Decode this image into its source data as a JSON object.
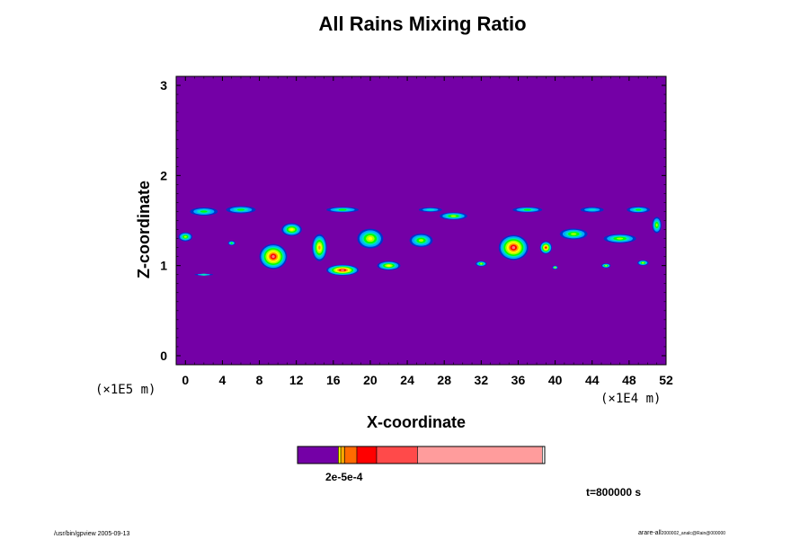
{
  "chart_data": {
    "type": "heatmap",
    "title": "All Rains Mixing Ratio",
    "xlabel": "X-coordinate",
    "ylabel": "Z-coordinate",
    "x_scale_label": "(×1E4 m)",
    "y_scale_label": "(×1E5 m)",
    "x_ticks": [
      0,
      4,
      8,
      12,
      16,
      20,
      24,
      28,
      32,
      36,
      40,
      44,
      48,
      52
    ],
    "y_ticks": [
      0,
      1,
      2,
      3
    ],
    "xlim": [
      -1.0,
      52.0
    ],
    "ylim": [
      -0.1,
      3.1
    ],
    "colorbar": {
      "label": "2e-5e-4",
      "colors": [
        "#7400a6",
        "#ffff00",
        "#ffaa00",
        "#ff6a00",
        "#ff0000",
        "#ff4a4a",
        "#ff9c9c"
      ],
      "fractions": [
        0.165,
        0.01,
        0.015,
        0.05,
        0.08,
        0.165,
        0.505
      ]
    },
    "background_color": "#7400a6",
    "band_colors": [
      "#0033cc",
      "#00aaff",
      "#00e0c0",
      "#00ff00",
      "#aaff00",
      "#ffff00",
      "#ff9900",
      "#ff0000",
      "#ff7777"
    ],
    "features": [
      {
        "x": 2.0,
        "z": 1.6,
        "w": 3.0,
        "h": 0.09,
        "peak": 0.4
      },
      {
        "x": 6.0,
        "z": 1.62,
        "w": 3.2,
        "h": 0.08,
        "peak": 0.4
      },
      {
        "x": 2.0,
        "z": 0.9,
        "w": 2.0,
        "h": 0.02,
        "peak": 0.35
      },
      {
        "x": 0.0,
        "z": 1.32,
        "w": 1.5,
        "h": 0.1,
        "peak": 0.5
      },
      {
        "x": 5.0,
        "z": 1.25,
        "w": 0.8,
        "h": 0.05,
        "peak": 0.45
      },
      {
        "x": 9.5,
        "z": 1.1,
        "w": 3.0,
        "h": 0.28,
        "peak": 1.0
      },
      {
        "x": 11.5,
        "z": 1.4,
        "w": 2.2,
        "h": 0.14,
        "peak": 0.7
      },
      {
        "x": 14.5,
        "z": 1.2,
        "w": 1.6,
        "h": 0.3,
        "peak": 0.8
      },
      {
        "x": 17.0,
        "z": 0.95,
        "w": 3.5,
        "h": 0.12,
        "peak": 0.95
      },
      {
        "x": 20.0,
        "z": 1.3,
        "w": 2.8,
        "h": 0.22,
        "peak": 0.7
      },
      {
        "x": 22.0,
        "z": 1.0,
        "w": 2.5,
        "h": 0.1,
        "peak": 0.7
      },
      {
        "x": 17.0,
        "z": 1.62,
        "w": 3.5,
        "h": 0.06,
        "peak": 0.4
      },
      {
        "x": 25.5,
        "z": 1.28,
        "w": 2.5,
        "h": 0.15,
        "peak": 0.6
      },
      {
        "x": 29.0,
        "z": 1.55,
        "w": 3.0,
        "h": 0.08,
        "peak": 0.5
      },
      {
        "x": 32.0,
        "z": 1.02,
        "w": 1.2,
        "h": 0.06,
        "peak": 0.55
      },
      {
        "x": 35.5,
        "z": 1.2,
        "w": 3.2,
        "h": 0.28,
        "peak": 1.0
      },
      {
        "x": 39.0,
        "z": 1.2,
        "w": 1.3,
        "h": 0.14,
        "peak": 0.85
      },
      {
        "x": 37.0,
        "z": 1.62,
        "w": 3.2,
        "h": 0.06,
        "peak": 0.4
      },
      {
        "x": 42.0,
        "z": 1.35,
        "w": 3.0,
        "h": 0.12,
        "peak": 0.5
      },
      {
        "x": 47.0,
        "z": 1.3,
        "w": 3.5,
        "h": 0.1,
        "peak": 0.6
      },
      {
        "x": 49.0,
        "z": 1.62,
        "w": 2.5,
        "h": 0.07,
        "peak": 0.45
      },
      {
        "x": 45.5,
        "z": 1.0,
        "w": 1.0,
        "h": 0.05,
        "peak": 0.55
      },
      {
        "x": 49.5,
        "z": 1.03,
        "w": 1.2,
        "h": 0.06,
        "peak": 0.55
      },
      {
        "x": 40.0,
        "z": 0.98,
        "w": 0.6,
        "h": 0.04,
        "peak": 0.5
      },
      {
        "x": 44.0,
        "z": 1.62,
        "w": 2.5,
        "h": 0.06,
        "peak": 0.35
      },
      {
        "x": 26.5,
        "z": 1.62,
        "w": 2.5,
        "h": 0.05,
        "peak": 0.35
      },
      {
        "x": 51.0,
        "z": 1.45,
        "w": 1.0,
        "h": 0.18,
        "peak": 0.55
      }
    ],
    "time_label": "t=800000 s"
  },
  "footer": {
    "left": "/usr/bin/gpview 2005-09-13",
    "right_main": "arare-all",
    "right_small": "2000002_analc@Rain@000000"
  }
}
